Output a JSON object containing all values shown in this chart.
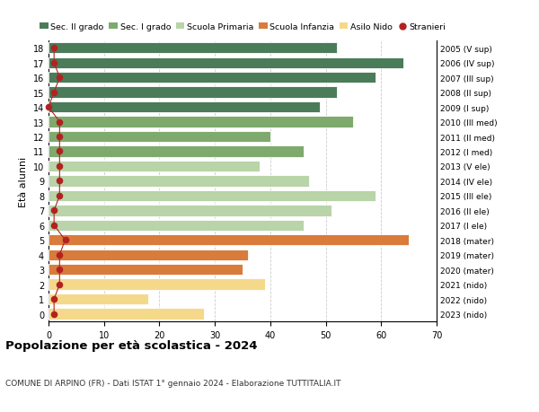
{
  "ages": [
    18,
    17,
    16,
    15,
    14,
    13,
    12,
    11,
    10,
    9,
    8,
    7,
    6,
    5,
    4,
    3,
    2,
    1,
    0
  ],
  "years": [
    "2005 (V sup)",
    "2006 (IV sup)",
    "2007 (III sup)",
    "2008 (II sup)",
    "2009 (I sup)",
    "2010 (III med)",
    "2011 (II med)",
    "2012 (I med)",
    "2013 (V ele)",
    "2014 (IV ele)",
    "2015 (III ele)",
    "2016 (II ele)",
    "2017 (I ele)",
    "2018 (mater)",
    "2019 (mater)",
    "2020 (mater)",
    "2021 (nido)",
    "2022 (nido)",
    "2023 (nido)"
  ],
  "values": [
    52,
    64,
    59,
    52,
    49,
    55,
    40,
    46,
    38,
    47,
    59,
    51,
    46,
    65,
    36,
    35,
    39,
    18,
    28
  ],
  "bar_colors": [
    "#4a7c59",
    "#4a7c59",
    "#4a7c59",
    "#4a7c59",
    "#4a7c59",
    "#7faa6e",
    "#7faa6e",
    "#7faa6e",
    "#b8d4a8",
    "#b8d4a8",
    "#b8d4a8",
    "#b8d4a8",
    "#b8d4a8",
    "#d97b3a",
    "#d97b3a",
    "#d97b3a",
    "#f5d98b",
    "#f5d98b",
    "#f5d98b"
  ],
  "legend_labels": [
    "Sec. II grado",
    "Sec. I grado",
    "Scuola Primaria",
    "Scuola Infanzia",
    "Asilo Nido",
    "Stranieri"
  ],
  "legend_colors": [
    "#4a7c59",
    "#7faa6e",
    "#b8d4a8",
    "#d97b3a",
    "#f5d98b",
    "#b22222"
  ],
  "title": "Popolazione per età scolastica - 2024",
  "subtitle": "COMUNE DI ARPINO (FR) - Dati ISTAT 1° gennaio 2024 - Elaborazione TUTTITALIA.IT",
  "ylabel_left": "Età alunni",
  "xlim": [
    0,
    70
  ],
  "xticks": [
    0,
    10,
    20,
    30,
    40,
    50,
    60,
    70
  ],
  "bar_height": 0.75,
  "dot_color": "#b22222",
  "dot_size": 20,
  "stranieri_x": [
    1,
    1,
    2,
    1,
    0,
    2,
    2,
    2,
    2,
    2,
    2,
    1,
    1,
    3,
    2,
    2,
    2,
    1,
    1
  ],
  "background_color": "#ffffff",
  "grid_color": "#cccccc"
}
